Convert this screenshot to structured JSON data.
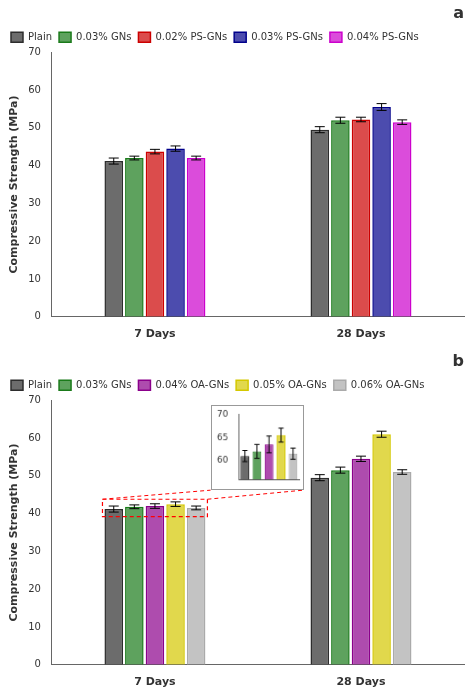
{
  "chart_data": [
    {
      "type": "bar",
      "title": "a",
      "categories": [
        "7 Days",
        "28 Days"
      ],
      "series": [
        {
          "name": "Plain",
          "color": "#2d2d2d",
          "values": [
            41.2,
            49.5
          ],
          "errors": [
            0.8,
            0.8
          ]
        },
        {
          "name": "0.03% GNs",
          "color": "#1a7a1a",
          "values": [
            42.0,
            52.0
          ],
          "errors": [
            0.5,
            0.8
          ]
        },
        {
          "name": "0.02% PS-GNs",
          "color": "#cc0000",
          "values": [
            43.7,
            52.2
          ],
          "errors": [
            0.6,
            0.6
          ]
        },
        {
          "name": "0.03% PS-GNs",
          "color": "#00008B",
          "values": [
            44.5,
            55.5
          ],
          "errors": [
            0.7,
            0.9
          ]
        },
        {
          "name": "0.04% PS-GNs",
          "color": "#cc00cc",
          "values": [
            42.0,
            51.5
          ],
          "errors": [
            0.5,
            0.6
          ]
        }
      ],
      "ylabel": "Compressive Strength (MPa)",
      "ylim": [
        0,
        70
      ],
      "yticks": [
        0,
        10,
        20,
        30,
        40,
        50,
        60,
        70
      ],
      "grid": false,
      "legend": "upper left"
    },
    {
      "type": "bar",
      "title": "b",
      "categories": [
        "7 Days",
        "28 Days"
      ],
      "series": [
        {
          "name": "Plain",
          "color": "#2d2d2d",
          "values": [
            41.2,
            49.5
          ],
          "errors": [
            0.8,
            0.8
          ]
        },
        {
          "name": "0.03% GNs",
          "color": "#1a7a1a",
          "values": [
            41.8,
            51.5
          ],
          "errors": [
            0.5,
            0.8
          ]
        },
        {
          "name": "0.04% OA-GNs",
          "color": "#8B008B",
          "values": [
            42.0,
            54.5
          ],
          "errors": [
            0.6,
            0.7
          ]
        },
        {
          "name": "0.05% OA-GNs",
          "color": "#d4c800",
          "values": [
            42.5,
            61.0
          ],
          "errors": [
            0.6,
            0.8
          ]
        },
        {
          "name": "0.06% OA-GNs",
          "color": "#aaaaaa",
          "values": [
            41.5,
            51.0
          ],
          "errors": [
            0.5,
            0.6
          ]
        }
      ],
      "ylabel": "Compressive Strength (MPa)",
      "ylim": [
        0,
        70
      ],
      "yticks": [
        0,
        10,
        20,
        30,
        40,
        50,
        60,
        70
      ],
      "grid": false,
      "legend": "upper left",
      "zoom_ylim": [
        39.2,
        43.8
      ],
      "inset": {
        "type": "bar",
        "values": [
          61.0,
          62.0,
          63.5,
          65.5,
          61.5
        ],
        "errors": [
          1.2,
          1.5,
          1.8,
          1.5,
          1.2
        ],
        "colors": [
          "#2d2d2d",
          "#1a7a1a",
          "#8B008B",
          "#d4c800",
          "#aaaaaa"
        ],
        "ylim": [
          56,
          70
        ],
        "yticks": [
          60,
          65,
          70
        ],
        "grid": false,
        "tick_labels": "y"
      }
    }
  ]
}
